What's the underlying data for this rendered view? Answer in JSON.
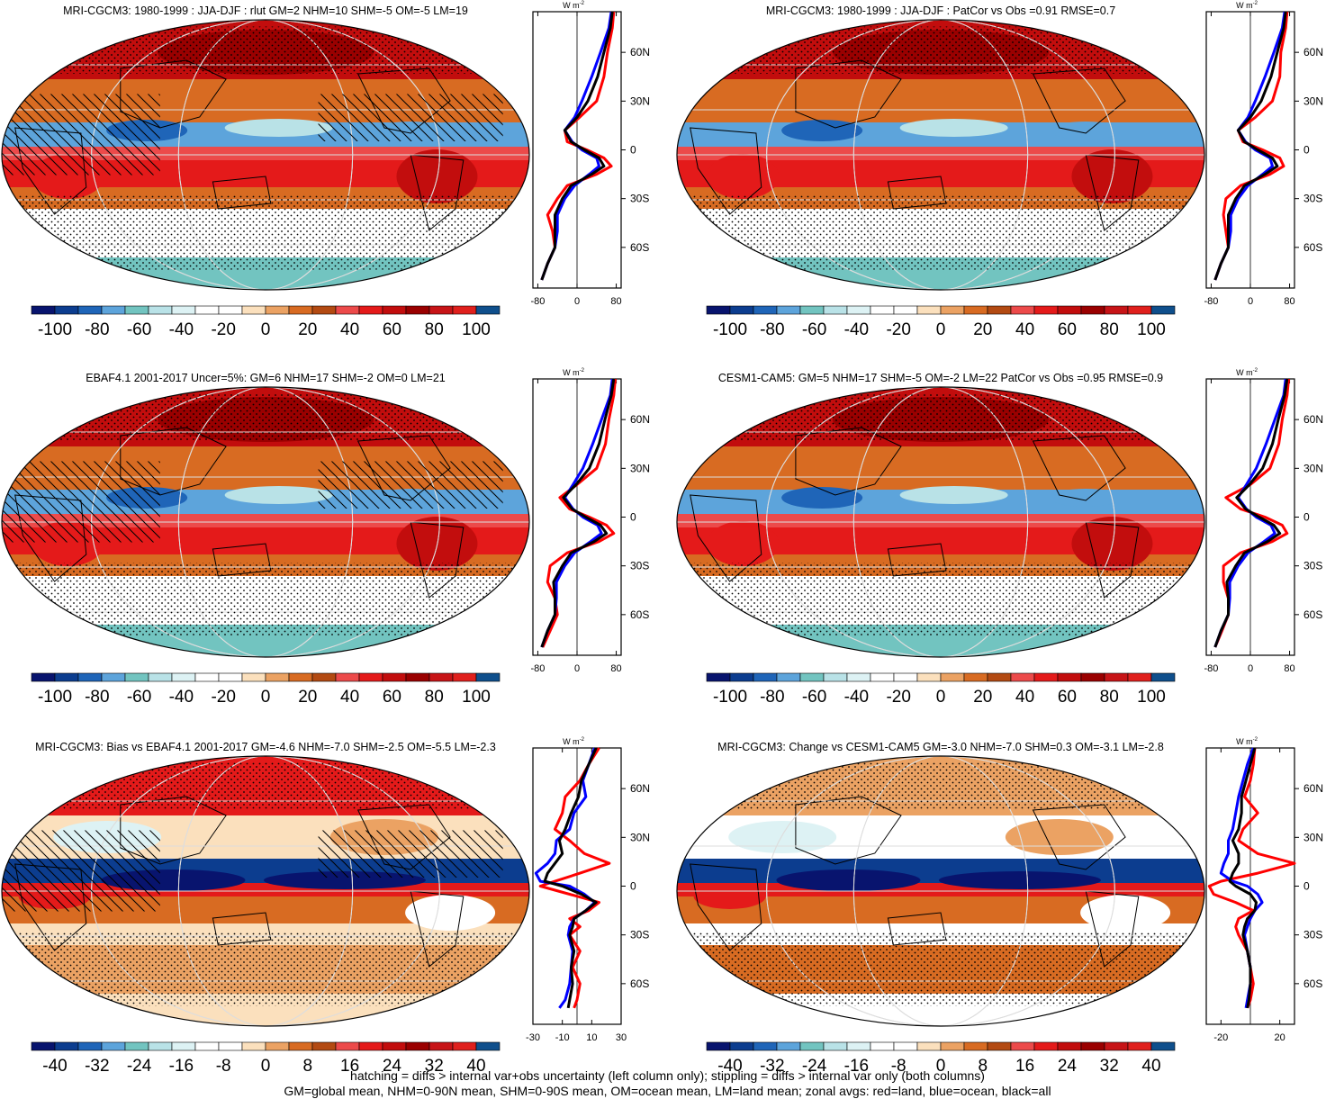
{
  "figure": {
    "caption_line_1": "hatching = diffs > internal var+obs uncertainty (left column only); stippling = diffs > internal var only (both columns)",
    "caption_line_2": "GM=global mean, NHM=0-90N mean, SHM=0-90S mean, OM=ocean mean, LM=land mean; zonal avgs: red=land, blue=ocean, black=all",
    "units_label": "W m",
    "units_exponent": "-2",
    "latitude_ticks": [
      "60N",
      "30N",
      "0",
      "30S",
      "60S"
    ],
    "colors": {
      "land": "#ff0000",
      "ocean": "#0000ff",
      "all": "#000000"
    }
  },
  "chart_data": [
    {
      "type": "heatmap",
      "id": "p1",
      "title": "MRI-CGCM3: 1980-1999 : JJA-DJF : rlut GM=2 NHM=10 SHM=-5 OM=-5 LM=19",
      "pattern": "climo",
      "hatched": true,
      "colorbar": {
        "ticks": [
          "-100",
          "-80",
          "-60",
          "-40",
          "-20",
          "0",
          "20",
          "40",
          "60",
          "80",
          "100"
        ],
        "range": [
          -100,
          100
        ]
      },
      "zonal": {
        "xlim": [
          -90,
          90
        ],
        "xticks": [
          "-80",
          "0",
          "80"
        ],
        "lats": [
          85,
          75,
          60,
          45,
          30,
          20,
          12,
          5,
          0,
          -5,
          -10,
          -15,
          -22,
          -30,
          -40,
          -50,
          -60,
          -70,
          -80
        ],
        "land": [
          75,
          72,
          62,
          55,
          40,
          5,
          -25,
          -20,
          20,
          55,
          70,
          40,
          -20,
          -40,
          -60,
          -50,
          -45,
          -60,
          -72
        ],
        "ocean": [
          70,
          65,
          48,
          30,
          10,
          -5,
          -25,
          -10,
          10,
          40,
          45,
          25,
          -5,
          -25,
          -40,
          -40,
          -45,
          -60,
          -72
        ],
        "all": [
          72,
          68,
          55,
          42,
          22,
          0,
          -25,
          -12,
          15,
          45,
          55,
          30,
          -12,
          -30,
          -45,
          -45,
          -45,
          -60,
          -72
        ]
      }
    },
    {
      "type": "heatmap",
      "id": "p2",
      "title": "MRI-CGCM3: 1980-1999 : JJA-DJF : PatCor vs Obs =0.91 RMSE=0.7",
      "pattern": "climo",
      "hatched": false,
      "colorbar": {
        "ticks": [
          "-100",
          "-80",
          "-60",
          "-40",
          "-20",
          "0",
          "20",
          "40",
          "60",
          "80",
          "100"
        ],
        "range": [
          -100,
          100
        ]
      },
      "zonal": {
        "xlim": [
          -90,
          90
        ],
        "xticks": [
          "-80",
          "0",
          "80"
        ],
        "lats": [
          85,
          75,
          60,
          45,
          30,
          20,
          12,
          5,
          0,
          -5,
          -10,
          -15,
          -22,
          -30,
          -40,
          -50,
          -60,
          -70,
          -80
        ],
        "land": [
          75,
          72,
          62,
          60,
          45,
          10,
          -25,
          -15,
          25,
          60,
          68,
          40,
          -20,
          -50,
          -55,
          -50,
          -45,
          -60,
          -72
        ],
        "ocean": [
          70,
          65,
          48,
          30,
          10,
          -5,
          -25,
          -10,
          10,
          40,
          45,
          25,
          -5,
          -25,
          -40,
          -40,
          -45,
          -60,
          -72
        ],
        "all": [
          72,
          68,
          55,
          42,
          22,
          0,
          -25,
          -12,
          15,
          45,
          55,
          30,
          -12,
          -30,
          -45,
          -45,
          -45,
          -60,
          -72
        ]
      }
    },
    {
      "type": "heatmap",
      "id": "p3",
      "title": "EBAF4.1 2001-2017 Uncer=5%: GM=6 NHM=17 SHM=-2 OM=0 LM=21",
      "pattern": "climo",
      "hatched": true,
      "colorbar": {
        "ticks": [
          "-100",
          "-80",
          "-60",
          "-40",
          "-20",
          "0",
          "20",
          "40",
          "60",
          "80",
          "100"
        ],
        "range": [
          -100,
          100
        ]
      },
      "zonal": {
        "xlim": [
          -90,
          90
        ],
        "xticks": [
          "-80",
          "0",
          "80"
        ],
        "lats": [
          85,
          75,
          60,
          45,
          30,
          20,
          12,
          5,
          0,
          -5,
          -10,
          -15,
          -22,
          -30,
          -40,
          -50,
          -60,
          -70,
          -80
        ],
        "land": [
          78,
          75,
          65,
          58,
          40,
          0,
          -35,
          -15,
          25,
          60,
          75,
          45,
          -20,
          -55,
          -60,
          -45,
          -40,
          -55,
          -70
        ],
        "ocean": [
          72,
          68,
          50,
          32,
          12,
          -8,
          -25,
          -8,
          12,
          42,
          50,
          28,
          -5,
          -25,
          -42,
          -42,
          -45,
          -60,
          -72
        ],
        "all": [
          75,
          70,
          57,
          45,
          25,
          -2,
          -28,
          -10,
          18,
          48,
          60,
          35,
          -12,
          -30,
          -48,
          -45,
          -45,
          -60,
          -72
        ]
      }
    },
    {
      "type": "heatmap",
      "id": "p4",
      "title": "CESM1-CAM5: GM=5 NHM=17 SHM=-5 OM=-2 LM=22 PatCor vs Obs =0.95 RMSE=0.9",
      "pattern": "climo",
      "hatched": false,
      "colorbar": {
        "ticks": [
          "-100",
          "-80",
          "-60",
          "-40",
          "-20",
          "0",
          "20",
          "40",
          "60",
          "80",
          "100"
        ],
        "range": [
          -100,
          100
        ]
      },
      "zonal": {
        "xlim": [
          -90,
          90
        ],
        "xticks": [
          "-80",
          "0",
          "80"
        ],
        "lats": [
          85,
          75,
          60,
          45,
          30,
          20,
          12,
          5,
          0,
          -5,
          -10,
          -15,
          -22,
          -30,
          -40,
          -50,
          -60,
          -70,
          -80
        ],
        "land": [
          78,
          75,
          65,
          58,
          40,
          0,
          -50,
          -20,
          30,
          65,
          75,
          45,
          -20,
          -55,
          -55,
          -45,
          -45,
          -58,
          -72
        ],
        "ocean": [
          72,
          68,
          50,
          32,
          12,
          -8,
          -25,
          -8,
          12,
          42,
          50,
          28,
          -5,
          -25,
          -42,
          -42,
          -45,
          -60,
          -72
        ],
        "all": [
          75,
          70,
          57,
          45,
          25,
          -2,
          -28,
          -10,
          18,
          48,
          60,
          35,
          -12,
          -30,
          -48,
          -45,
          -45,
          -60,
          -72
        ]
      }
    },
    {
      "type": "heatmap",
      "id": "p5",
      "title": "MRI-CGCM3: Bias vs EBAF4.1 2001-2017 GM=-4.6 NHM=-7.0 SHM=-2.5 OM=-5.5 LM=-2.3",
      "pattern": "bias",
      "hatched": true,
      "colorbar": {
        "ticks": [
          "-40",
          "-32",
          "-24",
          "-16",
          "-8",
          "0",
          "8",
          "16",
          "24",
          "32",
          "40"
        ],
        "range": [
          -40,
          40
        ]
      },
      "zonal": {
        "xlim": [
          -30,
          30
        ],
        "xticks": [
          "-30",
          "-10",
          "10",
          "30"
        ],
        "lats": [
          85,
          75,
          65,
          55,
          45,
          35,
          28,
          20,
          14,
          8,
          3,
          0,
          -5,
          -10,
          -15,
          -20,
          -25,
          -30,
          -40,
          -50,
          -60,
          -70,
          -75
        ],
        "land": [
          15,
          8,
          2,
          -8,
          -10,
          -15,
          -5,
          5,
          22,
          2,
          -15,
          -25,
          -5,
          15,
          8,
          -5,
          2,
          -5,
          2,
          -3,
          2,
          0,
          -2
        ],
        "ocean": [
          12,
          8,
          4,
          6,
          -2,
          -5,
          -14,
          -15,
          -20,
          -28,
          -25,
          -5,
          5,
          12,
          6,
          -2,
          -5,
          -6,
          -3,
          -4,
          -5,
          -8,
          -12
        ],
        "all": [
          13,
          8,
          3,
          1,
          -4,
          -8,
          -12,
          -10,
          -15,
          -20,
          -22,
          -10,
          3,
          13,
          6,
          -2,
          -3,
          -5,
          -2,
          -4,
          -3,
          -5,
          -6
        ]
      }
    },
    {
      "type": "heatmap",
      "id": "p6",
      "title": "MRI-CGCM3: Change vs CESM1-CAM5 GM=-3.0 NHM=-7.0 SHM=0.3 OM=-3.1 LM=-2.8",
      "pattern": "change",
      "hatched": false,
      "colorbar": {
        "ticks": [
          "-40",
          "-32",
          "-24",
          "-16",
          "-8",
          "0",
          "8",
          "16",
          "24",
          "32",
          "40"
        ],
        "range": [
          -40,
          40
        ]
      },
      "zonal": {
        "xlim": [
          -30,
          30
        ],
        "xticks": [
          "-20",
          "20"
        ],
        "lats": [
          85,
          75,
          65,
          55,
          45,
          35,
          28,
          20,
          14,
          8,
          3,
          0,
          -5,
          -10,
          -15,
          -20,
          -25,
          -30,
          -40,
          -50,
          -60,
          -70,
          -75
        ],
        "land": [
          3,
          2,
          0,
          -4,
          5,
          -5,
          -8,
          5,
          30,
          5,
          -20,
          -28,
          -25,
          -10,
          2,
          -8,
          -10,
          -8,
          -2,
          0,
          2,
          0,
          -2
        ],
        "ocean": [
          2,
          -2,
          -5,
          -8,
          -10,
          -12,
          -15,
          -15,
          -18,
          -20,
          -12,
          -2,
          5,
          8,
          3,
          0,
          -2,
          -4,
          -2,
          0,
          0,
          -2,
          -3
        ],
        "all": [
          3,
          0,
          -3,
          -6,
          -6,
          -8,
          -12,
          -8,
          -8,
          -12,
          -14,
          -10,
          0,
          4,
          3,
          -2,
          -4,
          -5,
          -2,
          0,
          0,
          -1,
          -2
        ]
      }
    }
  ]
}
